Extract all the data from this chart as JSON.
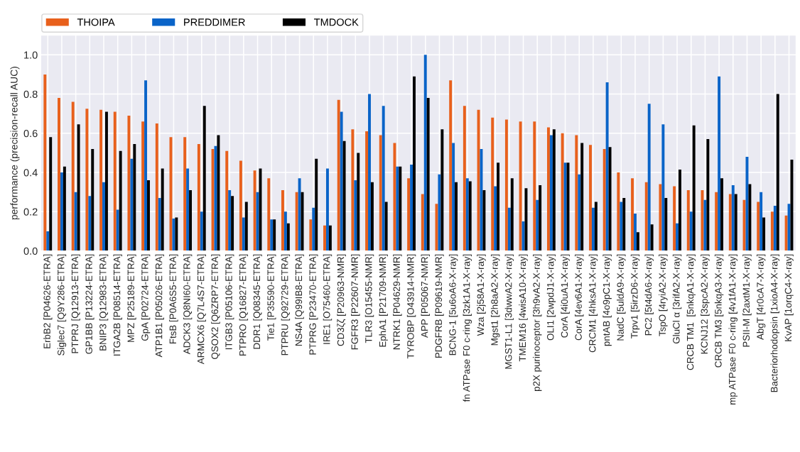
{
  "chart_data": {
    "type": "bar",
    "ylabel": "performance (precision-recall AUC)",
    "categories": [
      "ErbB2 [P04626-ETRA]",
      "Siglec7 [Q9Y286-ETRA]",
      "PTPRJ [Q12913-ETRA]",
      "GP1BB [P13224-ETRA]",
      "BNIP3 [Q12983-ETRA]",
      "ITGA2B [P08514-ETRA]",
      "MPZ [P25189-ETRA]",
      "GpA [P02724-ETRA]",
      "ATP1B1 [P05026-ETRA]",
      "FtsB [P0A6S5-ETRA]",
      "ADCK3 [Q8NI60-ETRA]",
      "ARMCX6 [Q7L4S7-ETRA]",
      "QSOX2 [Q6ZRP7-ETRA]",
      "ITGB3 [P05106-ETRA]",
      "PTPRO [Q16827-ETRA]",
      "DDR1 [Q08345-ETRA]",
      "Tie1 [P35590-ETRA]",
      "PTPRU [Q92729-ETRA]",
      "NS4A [Q99IB8-ETRA]",
      "PTPRG [P23470-ETRA]",
      "IRE1 [O75460-ETRA]",
      "CD3ζζ [P20963-NMR]",
      "FGFR3 [P22607-NMR]",
      "TLR3 [O15455-NMR]",
      "EphA1 [P21709-NMR]",
      "NTRK1 [P04629-NMR]",
      "TYROBP [O43914-NMR]",
      "APP [P05067-NMR]",
      "PDGFRB [P09619-NMR]",
      "BCNG-1 [5u6oA6-X-ray]",
      "fn ATPase F0 c-ring [3zk1A1-X-ray]",
      "Wza [2j58A1-X-ray]",
      "Mgst1 [2h8aA2-X-ray]",
      "MGST1-L1 [3dwwA2-X-ray]",
      "TMEM16 [4wisA10-X-ray]",
      "p2X purinoceptor [3h9vA2-X-ray]",
      "OLI1 [2wpdJ1-X-ray]",
      "CorA [4i0uA1-X-ray]",
      "CorA [4ev6A1-X-ray]",
      "CRCM1 [4hksA1-X-ray]",
      "pntAB [4o9pC1-X-ray]",
      "NadC [5uldA9-X-ray]",
      "Trpv1 [5irzD6-X-ray]",
      "PC2 [5t4dA6-X-ray]",
      "TspO [4ryiA2-X-ray]",
      "GluCl α [3rifA2-X-ray]",
      "CRCB TM1  [5nkqA1-X-ray]",
      "KCNJ12 [3spcA2-X-ray]",
      "CRCB TM3 [5nkqA3-X-ray]",
      "mp ATPase F0 c-ring [4v1fA1-X-ray]",
      "PSII-M [2axtM1-X-ray]",
      "AbgT [4r0cA7-X-ray]",
      "Bacteriorhodopsin [1xioA4-X-ray]",
      "KvAP [1orqC4-X-ray]"
    ],
    "series": [
      {
        "name": "THOIPA",
        "color": "#e8601c",
        "values": [
          0.9,
          0.78,
          0.76,
          0.725,
          0.72,
          0.71,
          0.69,
          0.66,
          0.65,
          0.58,
          0.58,
          0.545,
          0.52,
          0.51,
          0.46,
          0.41,
          0.37,
          0.31,
          0.3,
          0.16,
          0.13,
          0.77,
          0.62,
          0.61,
          0.59,
          0.55,
          0.37,
          0.29,
          0.24,
          0.87,
          0.74,
          0.72,
          0.68,
          0.67,
          0.66,
          0.66,
          0.63,
          0.6,
          0.59,
          0.54,
          0.52,
          0.4,
          0.37,
          0.35,
          0.34,
          0.33,
          0.31,
          0.31,
          0.3,
          0.29,
          0.26,
          0.25,
          0.2,
          0.18
        ]
      },
      {
        "name": "PREDDIMER",
        "color": "#0a64c8",
        "values": [
          0.1,
          0.4,
          0.3,
          0.28,
          0.35,
          0.21,
          0.47,
          0.87,
          0.27,
          0.165,
          0.42,
          0.2,
          0.535,
          0.31,
          0.17,
          0.3,
          0.16,
          0.2,
          0.37,
          0.22,
          0.42,
          0.71,
          0.36,
          0.8,
          0.74,
          0.43,
          0.44,
          1.0,
          0.39,
          0.55,
          0.37,
          0.52,
          0.33,
          0.22,
          0.15,
          0.26,
          0.59,
          0.45,
          0.39,
          0.22,
          0.86,
          0.25,
          0.19,
          0.75,
          0.645,
          0.14,
          0.2,
          0.26,
          0.89,
          0.335,
          0.48,
          0.3,
          0.23,
          0.24
        ]
      },
      {
        "name": "TMDOCK",
        "color": "#000000",
        "values": [
          0.58,
          0.43,
          0.645,
          0.52,
          0.71,
          0.51,
          0.545,
          0.36,
          0.42,
          0.17,
          0.31,
          0.74,
          0.59,
          0.28,
          0.25,
          0.42,
          0.16,
          0.14,
          0.3,
          0.47,
          0.13,
          0.56,
          0.5,
          0.35,
          0.25,
          0.43,
          0.89,
          0.78,
          0.62,
          0.35,
          0.355,
          0.31,
          0.45,
          0.37,
          0.32,
          0.335,
          0.62,
          0.45,
          0.55,
          0.25,
          0.53,
          0.27,
          0.095,
          0.135,
          0.27,
          0.415,
          0.64,
          0.57,
          0.37,
          0.29,
          0.34,
          0.17,
          0.8,
          0.465
        ]
      }
    ],
    "ylim": [
      0,
      1.1
    ],
    "yticks": [
      {
        "value": 0,
        "label": "0.0"
      },
      0.2,
      0.4,
      0.6,
      0.8,
      {
        "value": 1,
        "label": "1.0"
      }
    ],
    "grid": true,
    "legend": "top left"
  }
}
